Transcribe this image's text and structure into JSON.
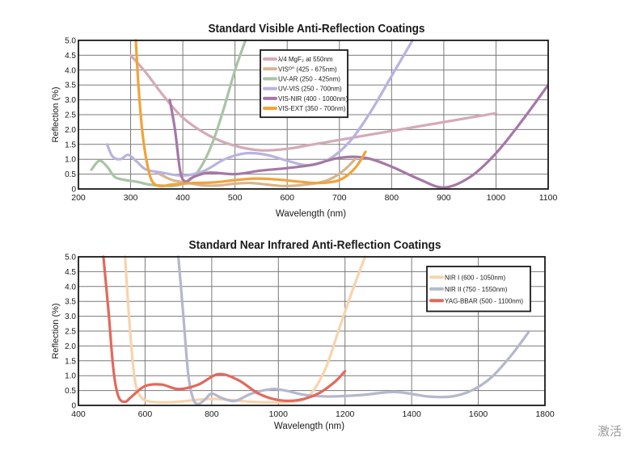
{
  "chart_data": [
    {
      "type": "line",
      "title": "Standard Visible Anti-Reflection Coatings",
      "xlabel": "Wavelength (nm)",
      "ylabel": "Reflection (%)",
      "xlim": [
        200,
        1100
      ],
      "ylim": [
        0,
        5.0
      ],
      "x_ticks": [
        200,
        300,
        400,
        500,
        600,
        700,
        800,
        900,
        1000,
        1100
      ],
      "x_tick_labels": [
        "200",
        "300",
        "400",
        "500",
        "600",
        "700",
        "800",
        "900",
        "1000",
        "1100"
      ],
      "y_ticks": [
        0,
        0.5,
        1.0,
        1.5,
        2.0,
        2.5,
        3.0,
        3.5,
        4.0,
        4.5,
        5.0
      ],
      "y_tick_labels": [
        "0",
        "0.5",
        "1.0",
        "1.5",
        "2.0",
        "2.5",
        "3.0",
        "3.5",
        "4.0",
        "4.5",
        "5.0"
      ],
      "grid": true,
      "legend_position": "top-center",
      "series": [
        {
          "name": "λ/4 MgF₂ at 550nm",
          "color": "#d4aab8",
          "x": [
            300,
            330,
            360,
            400,
            450,
            500,
            550,
            600,
            650,
            700,
            800,
            900,
            1000
          ],
          "y": [
            4.5,
            3.9,
            3.2,
            2.4,
            1.8,
            1.45,
            1.3,
            1.35,
            1.5,
            1.65,
            1.95,
            2.25,
            2.55
          ]
        },
        {
          "name": "VISᴼ° (425 - 675nm)",
          "color": "#d7b58e",
          "x": [
            350,
            380,
            410,
            440,
            470,
            500,
            530,
            560,
            590,
            620,
            650,
            670,
            690,
            710,
            730
          ],
          "y": [
            0.55,
            0.3,
            0.2,
            0.12,
            0.12,
            0.18,
            0.2,
            0.15,
            0.1,
            0.12,
            0.18,
            0.25,
            0.4,
            0.65,
            1.0
          ]
        },
        {
          "name": "UV-AR (250 - 425nm)",
          "color": "#a9c4a6",
          "x": [
            225,
            240,
            255,
            270,
            290,
            310,
            335,
            355,
            380,
            400,
            420,
            440,
            460,
            480,
            500,
            520
          ],
          "y": [
            0.65,
            0.95,
            0.75,
            0.4,
            0.3,
            0.25,
            0.15,
            0.12,
            0.1,
            0.18,
            0.4,
            0.9,
            1.7,
            2.8,
            4.0,
            5.0
          ]
        },
        {
          "name": "UV-VIS (250 - 700nm)",
          "color": "#b8b3de",
          "x": [
            255,
            265,
            280,
            295,
            310,
            330,
            360,
            400,
            440,
            480,
            520,
            560,
            600,
            640,
            680,
            720,
            760,
            800,
            840
          ],
          "y": [
            1.5,
            1.1,
            1.0,
            1.15,
            0.95,
            0.65,
            0.55,
            0.45,
            0.6,
            1.0,
            1.2,
            1.15,
            0.95,
            0.8,
            1.0,
            1.6,
            2.6,
            3.8,
            5.0
          ]
        },
        {
          "name": "VIS-NIR (400 - 1000nm)",
          "color": "#a678a6",
          "x": [
            375,
            385,
            395,
            405,
            420,
            450,
            500,
            550,
            600,
            650,
            700,
            750,
            800,
            850,
            900,
            950,
            1000,
            1050,
            1100
          ],
          "y": [
            3.0,
            2.0,
            0.6,
            0.25,
            0.4,
            0.55,
            0.5,
            0.62,
            0.7,
            0.82,
            1.05,
            1.05,
            0.75,
            0.35,
            0.05,
            0.4,
            1.2,
            2.3,
            3.5
          ]
        },
        {
          "name": "VIS-EXT (350 - 700nm)",
          "color": "#f2a33a",
          "x": [
            310,
            315,
            322,
            330,
            340,
            355,
            380,
            420,
            460,
            500,
            540,
            580,
            620,
            660,
            700,
            730,
            750
          ],
          "y": [
            5.0,
            3.5,
            2.0,
            1.0,
            0.3,
            0.1,
            0.15,
            0.2,
            0.22,
            0.3,
            0.35,
            0.32,
            0.25,
            0.2,
            0.3,
            0.7,
            1.25
          ]
        }
      ]
    },
    {
      "type": "line",
      "title": "Standard Near Infrared Anti-Reflection Coatings",
      "xlabel": "Wavelength (nm)",
      "ylabel": "Reflection (%)",
      "xlim": [
        400,
        1800
      ],
      "ylim": [
        0,
        5.0
      ],
      "x_ticks": [
        400,
        600,
        800,
        1000,
        1200,
        1400,
        1600,
        1800
      ],
      "x_tick_labels": [
        "400",
        "600",
        "800",
        "1000",
        "1200",
        "1400",
        "1600",
        "1800"
      ],
      "y_ticks": [
        0,
        0.5,
        1.0,
        1.5,
        2.0,
        2.5,
        3.0,
        3.5,
        4.0,
        4.5,
        5.0
      ],
      "y_tick_labels": [
        "0",
        "0.5",
        "1.0",
        "1.5",
        "2.0",
        "2.5",
        "3.0",
        "3.5",
        "4.0",
        "4.5",
        "5.0"
      ],
      "grid": true,
      "legend_position": "top-right",
      "series": [
        {
          "name": "NIR I (600 - 1050nm)",
          "color": "#f8d3ad",
          "x": [
            540,
            555,
            570,
            590,
            620,
            660,
            700,
            750,
            800,
            860,
            920,
            980,
            1040,
            1090,
            1140,
            1180,
            1220,
            1260
          ],
          "y": [
            5.0,
            2.5,
            0.8,
            0.25,
            0.12,
            0.1,
            0.12,
            0.18,
            0.22,
            0.18,
            0.12,
            0.1,
            0.12,
            0.3,
            1.2,
            2.5,
            3.8,
            5.0
          ]
        },
        {
          "name": "NIR II (750 - 1550nm)",
          "color": "#b4b8cc",
          "x": [
            700,
            715,
            730,
            745,
            760,
            780,
            800,
            830,
            870,
            920,
            980,
            1020,
            1080,
            1150,
            1250,
            1350,
            1450,
            1520,
            1580,
            1640,
            1700,
            1750
          ],
          "y": [
            5.0,
            3.0,
            1.0,
            0.2,
            0.05,
            0.2,
            0.4,
            0.25,
            0.15,
            0.4,
            0.55,
            0.5,
            0.35,
            0.3,
            0.35,
            0.45,
            0.3,
            0.3,
            0.5,
            0.95,
            1.7,
            2.45
          ]
        },
        {
          "name": "YAG-BBAR (500 - 1100nm)",
          "color": "#e2695c",
          "x": [
            475,
            490,
            505,
            520,
            540,
            560,
            600,
            650,
            700,
            760,
            820,
            880,
            940,
            1000,
            1060,
            1120,
            1170,
            1200
          ],
          "y": [
            5.0,
            3.2,
            1.2,
            0.3,
            0.12,
            0.3,
            0.65,
            0.7,
            0.55,
            0.7,
            1.05,
            0.85,
            0.4,
            0.18,
            0.18,
            0.4,
            0.8,
            1.15
          ]
        }
      ]
    }
  ],
  "watermark": "激活"
}
